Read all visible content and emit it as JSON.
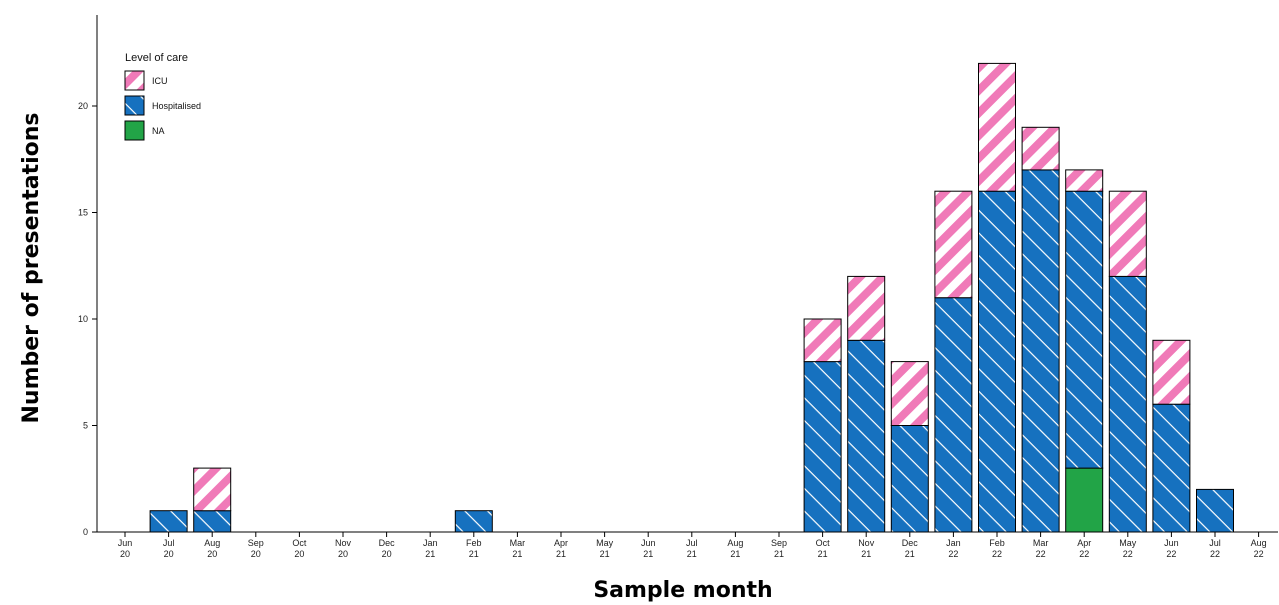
{
  "chart_data": {
    "type": "bar",
    "stacked": true,
    "xlabel": "Sample month",
    "ylabel": "Number of presentations",
    "ylim": [
      0,
      23
    ],
    "yticks": [
      0,
      5,
      10,
      15,
      20
    ],
    "categories": [
      [
        "Jun",
        "20"
      ],
      [
        "Jul",
        "20"
      ],
      [
        "Aug",
        "20"
      ],
      [
        "Sep",
        "20"
      ],
      [
        "Oct",
        "20"
      ],
      [
        "Nov",
        "20"
      ],
      [
        "Dec",
        "20"
      ],
      [
        "Jan",
        "21"
      ],
      [
        "Feb",
        "21"
      ],
      [
        "Mar",
        "21"
      ],
      [
        "Apr",
        "21"
      ],
      [
        "May",
        "21"
      ],
      [
        "Jun",
        "21"
      ],
      [
        "Jul",
        "21"
      ],
      [
        "Aug",
        "21"
      ],
      [
        "Sep",
        "21"
      ],
      [
        "Oct",
        "21"
      ],
      [
        "Nov",
        "21"
      ],
      [
        "Dec",
        "21"
      ],
      [
        "Jan",
        "22"
      ],
      [
        "Feb",
        "22"
      ],
      [
        "Mar",
        "22"
      ],
      [
        "Apr",
        "22"
      ],
      [
        "May",
        "22"
      ],
      [
        "Jun",
        "22"
      ],
      [
        "Jul",
        "22"
      ],
      [
        "Aug",
        "22"
      ]
    ],
    "legend": {
      "title": "Level of care",
      "position": "top-left"
    },
    "series": [
      {
        "name": "NA",
        "color": "#22a447",
        "pattern": "none",
        "values": [
          0,
          0,
          0,
          0,
          0,
          0,
          0,
          0,
          0,
          0,
          0,
          0,
          0,
          0,
          0,
          0,
          0,
          0,
          0,
          0,
          0,
          0,
          3,
          0,
          0,
          0,
          0
        ]
      },
      {
        "name": "Hospitalised",
        "color": "#1671bf",
        "pattern": "diagonal-lines",
        "values": [
          0,
          1,
          1,
          0,
          0,
          0,
          0,
          0,
          1,
          0,
          0,
          0,
          0,
          0,
          0,
          0,
          8,
          9,
          5,
          11,
          16,
          17,
          13,
          12,
          6,
          2,
          0
        ]
      },
      {
        "name": "ICU",
        "color": "#f07ab8",
        "pattern": "stripes",
        "values": [
          0,
          0,
          2,
          0,
          0,
          0,
          0,
          0,
          0,
          0,
          0,
          0,
          0,
          0,
          0,
          0,
          2,
          3,
          3,
          5,
          6,
          2,
          1,
          4,
          3,
          0,
          0
        ]
      }
    ],
    "legend_order": [
      "ICU",
      "Hospitalised",
      "NA"
    ],
    "grid": false
  }
}
